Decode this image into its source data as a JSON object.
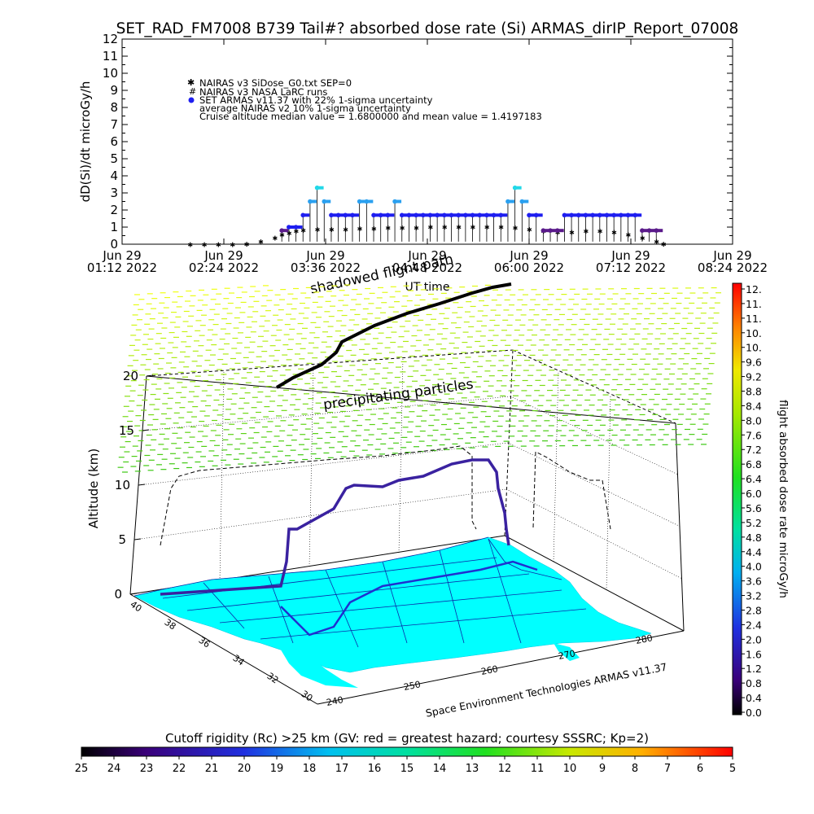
{
  "chart_data": [
    {
      "type": "scatter",
      "title": "SET_RAD_FM7008  B739 Tail#? absorbed dose rate (Si) ARMAS_dirIP_Report_07008",
      "xlabel": "UT time",
      "ylabel": "dD(Si)/dt microGy/h",
      "ylim": [
        0,
        12
      ],
      "xlim": [
        "2022-06-29 01:12",
        "2022-06-29 08:24"
      ],
      "x_ticks": [
        {
          "line1": "Jun 29",
          "line2": "01:12 2022"
        },
        {
          "line1": "Jun 29",
          "line2": "02:24 2022"
        },
        {
          "line1": "Jun 29",
          "line2": "03:36 2022"
        },
        {
          "line1": "Jun 29",
          "line2": "04:48 2022"
        },
        {
          "line1": "Jun 29",
          "line2": "06:00 2022"
        },
        {
          "line1": "Jun 29",
          "line2": "07:12 2022"
        },
        {
          "line1": "Jun 29",
          "line2": "08:24 2022"
        }
      ],
      "y_ticks": [
        "0",
        "1",
        "2",
        "3",
        "4",
        "5",
        "6",
        "7",
        "8",
        "9",
        "10",
        "11",
        "12"
      ],
      "legend_placement": "top-left",
      "legend": [
        "NAIRAS v3 SiDose_G0.txt SEP=0",
        "NAIRAS v3 NASA LaRC runs",
        "SET ARMAS v11.37 with 22% 1-sigma uncertainty",
        "average NAIRAS v2 10% 1-sigma uncertainty",
        "Cruise altitude median value = 1.6800000 and mean value = 1.4197183"
      ],
      "overlay_labels": [
        "shadowed flight path"
      ],
      "colors": {
        "armas": "#1e1ef0",
        "nairas": "#5a5a5a",
        "peak": "#22d8e8",
        "mid": "#2aa0f0",
        "low": "#5a1a8a"
      },
      "series": [
        {
          "name": "NAIRAS v3 SiDose_G0.txt SEP=0",
          "x": [
            "02:00",
            "02:10",
            "02:20",
            "02:30",
            "02:40",
            "02:50",
            "03:00",
            "03:05",
            "03:10",
            "03:15",
            "03:20",
            "03:30",
            "03:40",
            "03:50",
            "04:00",
            "04:10",
            "04:20",
            "04:30",
            "04:40",
            "04:50",
            "05:00",
            "05:10",
            "05:20",
            "05:30",
            "05:40",
            "05:50",
            "06:00",
            "06:10",
            "06:20",
            "06:30",
            "06:40",
            "06:50",
            "07:00",
            "07:10",
            "07:20",
            "07:30",
            "07:35"
          ],
          "y": [
            0.02,
            0.02,
            0.02,
            0.02,
            0.05,
            0.2,
            0.4,
            0.6,
            0.7,
            0.8,
            0.85,
            0.9,
            0.9,
            0.9,
            0.95,
            0.95,
            1.0,
            1.0,
            1.0,
            1.05,
            1.05,
            1.05,
            1.05,
            1.05,
            1.05,
            1.0,
            0.9,
            0.8,
            0.75,
            0.75,
            0.8,
            0.8,
            0.75,
            0.6,
            0.4,
            0.2,
            0.05
          ]
        },
        {
          "name": "SET ARMAS v11.37 with 22% 1-sigma uncertainty",
          "x": [
            "03:05",
            "03:10",
            "03:15",
            "03:20",
            "03:25",
            "03:30",
            "03:35",
            "03:40",
            "03:45",
            "03:50",
            "03:55",
            "04:00",
            "04:05",
            "04:10",
            "04:15",
            "04:20",
            "04:25",
            "04:30",
            "04:35",
            "04:40",
            "04:45",
            "04:50",
            "04:55",
            "05:00",
            "05:05",
            "05:10",
            "05:15",
            "05:20",
            "05:25",
            "05:30",
            "05:35",
            "05:40",
            "05:45",
            "05:50",
            "05:55",
            "06:00",
            "06:05",
            "06:10",
            "06:15",
            "06:20",
            "06:25",
            "06:30",
            "06:35",
            "06:40",
            "06:45",
            "06:50",
            "06:55",
            "07:00",
            "07:05",
            "07:10",
            "07:15",
            "07:20",
            "07:25",
            "07:30"
          ],
          "y": [
            0.8,
            1.0,
            1.0,
            1.7,
            2.5,
            3.3,
            2.5,
            1.7,
            1.7,
            1.7,
            1.7,
            2.5,
            2.5,
            1.7,
            1.7,
            1.7,
            2.5,
            1.7,
            1.7,
            1.7,
            1.7,
            1.7,
            1.7,
            1.7,
            1.7,
            1.7,
            1.7,
            1.7,
            1.7,
            1.7,
            1.7,
            1.7,
            2.5,
            3.3,
            2.5,
            1.7,
            1.7,
            0.8,
            0.8,
            0.8,
            1.7,
            1.7,
            1.7,
            1.7,
            1.7,
            1.7,
            1.7,
            1.7,
            1.7,
            1.7,
            1.7,
            0.8,
            0.8,
            0.8
          ]
        }
      ]
    },
    {
      "type": "scatter",
      "ylabel": "Altitude (km)",
      "z_ticks": [
        "0",
        "5",
        "10",
        "15",
        "20"
      ],
      "lat_ticks": [
        "40",
        "38",
        "36",
        "34",
        "32",
        "30"
      ],
      "lon_ticks": [
        "240",
        "250",
        "260",
        "270",
        "280"
      ],
      "overlay_labels": [
        "precipitating particles"
      ],
      "credit": "Space Environment Technologies ARMAS v11.37",
      "dose_colorbar": {
        "label": "flight absorbed dose rate microGy/h",
        "ticks": [
          "12.",
          "11.",
          "11.",
          "10.",
          "10.",
          "9.6",
          "9.2",
          "8.8",
          "8.4",
          "8.0",
          "7.6",
          "7.2",
          "6.8",
          "6.4",
          "6.0",
          "5.6",
          "5.2",
          "4.8",
          "4.4",
          "4.0",
          "3.6",
          "3.2",
          "2.8",
          "2.4",
          "2.0",
          "1.6",
          "1.2",
          "0.8",
          "0.4",
          "0.0"
        ]
      },
      "rigidity_colorbar": {
        "label": "Cutoff rigidity (Rc) >25 km (GV: red = greatest hazard; courtesy SSSRC; Kp=2)",
        "ticks": [
          "25",
          "24",
          "23",
          "22",
          "21",
          "20",
          "19",
          "18",
          "17",
          "16",
          "15",
          "14",
          "13",
          "12",
          "11",
          "10",
          "9",
          "8",
          "7",
          "6",
          "5"
        ]
      },
      "flight_track": {
        "units": [
          "lon_deg",
          "lat_deg",
          "alt_km"
        ],
        "points": [
          [
            241.5,
            33.9,
            0
          ],
          [
            242,
            34.5,
            3
          ],
          [
            243,
            35,
            6
          ],
          [
            246,
            36.2,
            8
          ],
          [
            250,
            37,
            9.5
          ],
          [
            254,
            37.6,
            10.5
          ],
          [
            258,
            38.2,
            11
          ],
          [
            262,
            38.8,
            11.5
          ],
          [
            266,
            39.5,
            11.5
          ],
          [
            270,
            40,
            12
          ],
          [
            272,
            40.5,
            10
          ],
          [
            274,
            41,
            3
          ],
          [
            275,
            41.2,
            0
          ]
        ]
      }
    }
  ]
}
